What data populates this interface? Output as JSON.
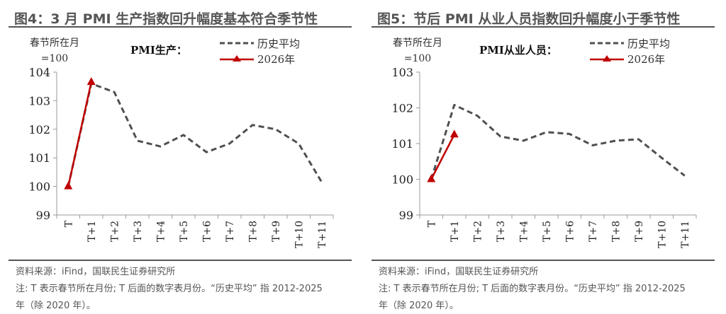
{
  "colors": {
    "history": "#505050",
    "y2026": "#c00000",
    "axis": "#999999",
    "text": "#333333"
  },
  "panels": [
    {
      "title": "图4：3 月 PMI 生产指数回升幅度基本符合季节性",
      "unit_line1": "春节所在月",
      "unit_line2": "=100",
      "series_label": "PMI生产：",
      "legend": [
        "历史平均",
        "2026年"
      ],
      "source": "资料来源：iFind，国联民生证券研究所",
      "note_line1": "注: T 表示春节所在月份; T 后面的数字表月份。“历史平均” 指 2012-2025",
      "note_line2": "年（除 2020 年）。"
    },
    {
      "title": "图5：节后 PMI 从业人员指数回升幅度小于季节性",
      "unit_line1": "春节所在月",
      "unit_line2": "=100",
      "series_label": "PMI从业人员：",
      "legend": [
        "历史平均",
        "2026年"
      ],
      "source": "资料来源：iFind，国联民生证券研究所",
      "note_line1": "注: T 表示春节所在月份; T 后面的数字表月份。“历史平均” 指 2012-2025",
      "note_line2": "年（除 2020 年）。"
    }
  ],
  "chart_data": [
    {
      "type": "line",
      "title": "图4：3 月 PMI 生产指数回升幅度基本符合季节性",
      "ylabel": "春节所在月=100",
      "categories": [
        "T",
        "T+1",
        "T+2",
        "T+3",
        "T+4",
        "T+5",
        "T+6",
        "T+7",
        "T+8",
        "T+9",
        "T+10",
        "T+11"
      ],
      "ylim": [
        99,
        104
      ],
      "yticks": [
        99,
        100,
        101,
        102,
        103,
        104
      ],
      "grid": false,
      "legend_position": "top-right",
      "series": [
        {
          "name": "历史平均",
          "style": "dashed",
          "values": [
            100.0,
            103.6,
            103.3,
            101.6,
            101.4,
            101.8,
            101.2,
            101.5,
            102.15,
            102.0,
            101.5,
            100.15
          ]
        },
        {
          "name": "2026年",
          "style": "solid-triangle",
          "values": [
            100.0,
            103.65,
            null,
            null,
            null,
            null,
            null,
            null,
            null,
            null,
            null,
            null
          ]
        }
      ]
    },
    {
      "type": "line",
      "title": "图5：节后 PMI 从业人员指数回升幅度小于季节性",
      "ylabel": "春节所在月=100",
      "categories": [
        "T",
        "T+1",
        "T+2",
        "T+3",
        "T+4",
        "T+5",
        "T+6",
        "T+7",
        "T+8",
        "T+9",
        "T+10",
        "T+11"
      ],
      "ylim": [
        99,
        103
      ],
      "yticks": [
        99,
        100,
        101,
        102,
        103
      ],
      "grid": false,
      "legend_position": "top-right",
      "series": [
        {
          "name": "历史平均",
          "style": "dashed",
          "values": [
            100.0,
            102.08,
            101.78,
            101.2,
            101.08,
            101.32,
            101.27,
            100.95,
            101.08,
            101.12,
            100.6,
            100.1
          ]
        },
        {
          "name": "2026年",
          "style": "solid-triangle",
          "values": [
            100.0,
            101.25,
            null,
            null,
            null,
            null,
            null,
            null,
            null,
            null,
            null,
            null
          ]
        }
      ]
    }
  ]
}
